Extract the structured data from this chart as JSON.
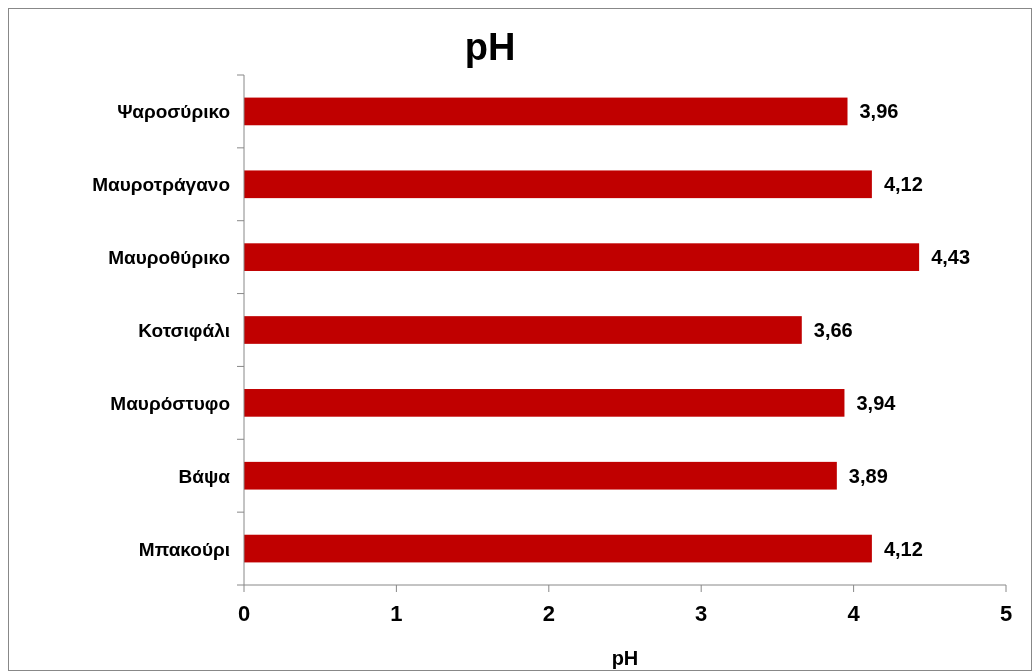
{
  "chart_data": {
    "type": "bar",
    "orientation": "horizontal",
    "title": "pH",
    "xlabel": "pH",
    "categories": [
      "Ψαροσύρικο",
      "Μαυροτράγανο",
      "Μαυροθύρικο",
      "Κοτσιφάλι",
      "Μαυρόστυφο",
      "Βάψα",
      "Μπακούρι"
    ],
    "values": [
      3.96,
      4.12,
      4.43,
      3.66,
      3.94,
      3.89,
      4.12
    ],
    "value_labels": [
      "3,96",
      "4,12",
      "4,43",
      "3,66",
      "3,94",
      "3,89",
      "4,12"
    ],
    "color": "#c00000",
    "xlim": [
      0,
      5
    ],
    "xticks": [
      0,
      1,
      2,
      3,
      4,
      5
    ],
    "grid": false
  }
}
